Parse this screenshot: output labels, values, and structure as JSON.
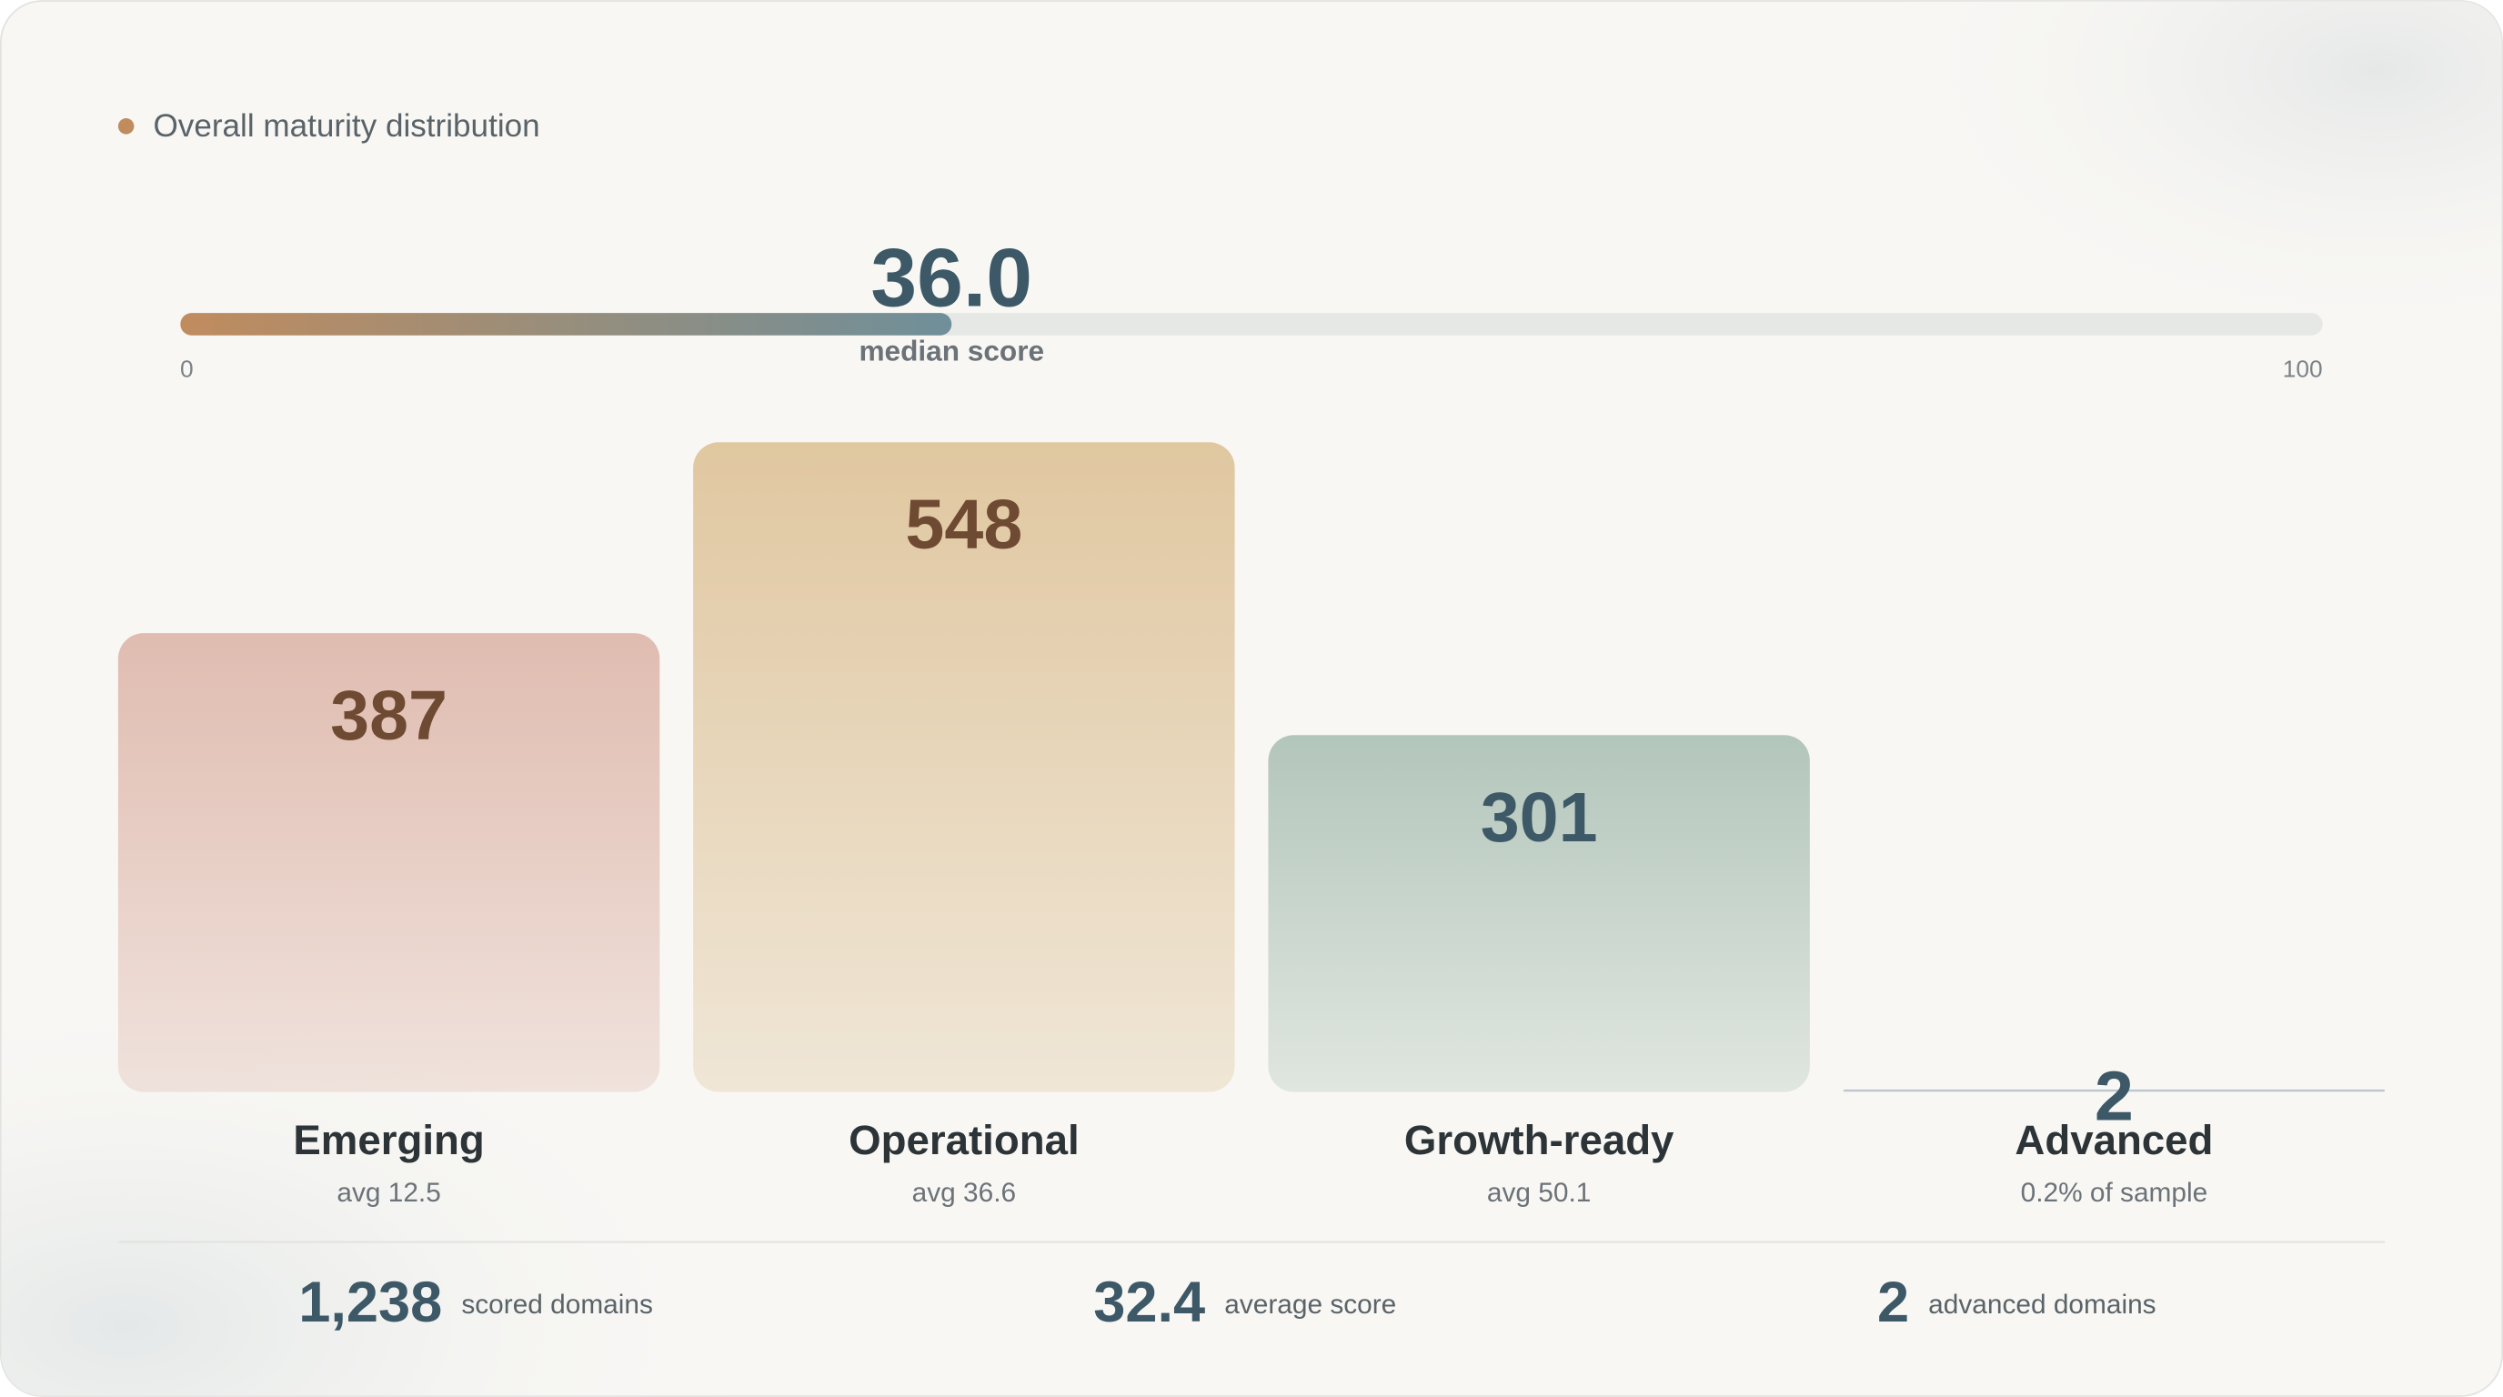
{
  "chart_data": {
    "type": "bar",
    "title": "Overall maturity distribution",
    "title_dot_color": "#c08c5e",
    "gauge": {
      "value": 36.0,
      "value_label": "36.0",
      "label": "median score",
      "min": 0,
      "max": 100,
      "colors": [
        "#c08c5e",
        "#6f8f9a"
      ]
    },
    "categories": [
      "Emerging",
      "Operational",
      "Growth-ready",
      "Advanced"
    ],
    "subtitles": [
      "avg 12.5",
      "avg 36.6",
      "avg 50.1",
      "0.2% of sample"
    ],
    "values": [
      387,
      548,
      301,
      2
    ],
    "colors": [
      "#e0bcb0",
      "#e0c7a0",
      "#b3c6bb",
      "#a9b7c4"
    ],
    "label_colors": [
      "#6e4a32",
      "#6e4a32",
      "#3d5866",
      "#3d5866"
    ],
    "stats": [
      {
        "value": 1238,
        "value_label": "1,238",
        "label": "scored domains"
      },
      {
        "value": 32.4,
        "label": "average score"
      },
      {
        "value": 2,
        "label": "advanced domains"
      }
    ]
  }
}
